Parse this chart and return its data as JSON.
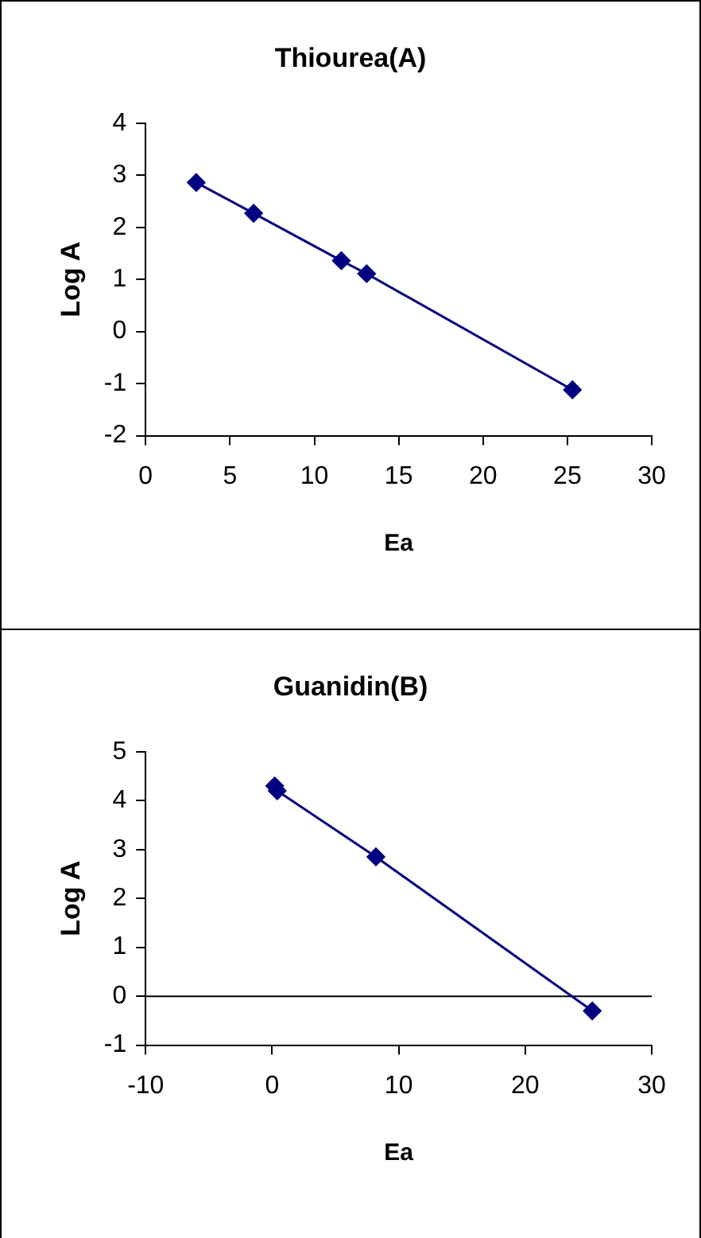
{
  "chart_data": [
    {
      "type": "line",
      "title": "Thiourea(A)",
      "xlabel": "Ea",
      "ylabel": "Log A",
      "x": [
        3.0,
        6.4,
        11.6,
        13.1,
        25.3
      ],
      "series": [
        {
          "color": "#000080",
          "values": [
            2.86,
            2.27,
            1.36,
            1.11,
            -1.12
          ]
        }
      ],
      "xlim": [
        0,
        30
      ],
      "xticks": [
        0,
        5,
        10,
        15,
        20,
        25,
        30
      ],
      "ylim": [
        -2,
        4
      ],
      "yticks": [
        -2,
        -1,
        0,
        1,
        2,
        3,
        4
      ],
      "grid": false,
      "legend": false,
      "marker": "diamond",
      "line_style": "solid"
    },
    {
      "type": "line",
      "title": "Guanidin(B)",
      "xlabel": "Ea",
      "ylabel": "Log A",
      "x": [
        0.2,
        0.4,
        8.2,
        25.3
      ],
      "series": [
        {
          "color": "#000080",
          "values": [
            4.3,
            4.2,
            2.85,
            -0.3
          ]
        }
      ],
      "xlim": [
        -10,
        30
      ],
      "xticks": [
        -10,
        0,
        10,
        20,
        30
      ],
      "ylim": [
        -1,
        5
      ],
      "yticks": [
        -1,
        0,
        1,
        2,
        3,
        4,
        5
      ],
      "ref_lines": [
        {
          "axis": "y",
          "value": 0,
          "color": "#000000"
        }
      ],
      "grid": false,
      "legend": false,
      "marker": "diamond",
      "line_style": "solid"
    }
  ]
}
